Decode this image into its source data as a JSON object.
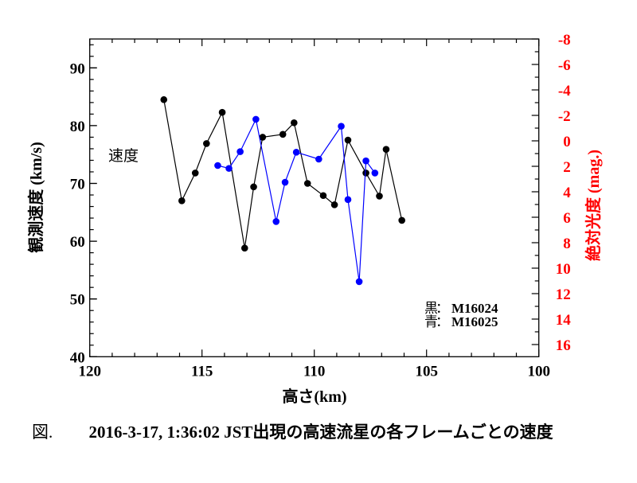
{
  "chart_data": {
    "type": "line",
    "xlabel": "高さ(km)",
    "ylabel": "観測速度 (km/s)",
    "y2label": "絶対光度 (mag.)",
    "annotation": "速度",
    "xlim": [
      120,
      100
    ],
    "ylim": [
      40,
      95
    ],
    "y2lim": [
      -8,
      16.9
    ],
    "x_ticks": [
      120,
      115,
      110,
      105,
      100
    ],
    "y_ticks": [
      40,
      50,
      60,
      70,
      80,
      90
    ],
    "y2_ticks": [
      -8,
      -6,
      -4,
      -2,
      0,
      2,
      4,
      6,
      8,
      10,
      12,
      14,
      16
    ],
    "grid": false,
    "legend": {
      "position": "bottom-right",
      "entries": [
        {
          "marker": "黒",
          "sep": "：",
          "label": "M16024"
        },
        {
          "marker": "青",
          "sep": "：",
          "label": "M16025"
        }
      ]
    },
    "series": [
      {
        "name": "M16024",
        "color": "#000000",
        "x": [
          116.7,
          115.9,
          115.3,
          114.8,
          114.1,
          113.1,
          112.7,
          112.3,
          111.4,
          110.9,
          110.3,
          109.6,
          109.1,
          108.5,
          107.7,
          107.1,
          106.8,
          106.1
        ],
        "y": [
          84.5,
          67.0,
          71.8,
          76.9,
          82.3,
          58.8,
          69.4,
          78.0,
          78.5,
          80.5,
          70.0,
          67.9,
          66.3,
          77.5,
          71.8,
          67.8,
          75.9,
          63.6
        ]
      },
      {
        "name": "M16025",
        "color": "#0000ff",
        "x": [
          114.3,
          113.8,
          113.3,
          112.6,
          111.7,
          111.3,
          110.8,
          109.8,
          108.8,
          108.5,
          108.0,
          107.7,
          107.3
        ],
        "y": [
          73.1,
          72.6,
          75.5,
          81.1,
          63.4,
          70.2,
          75.4,
          74.2,
          79.9,
          67.2,
          53.0,
          73.9,
          71.8
        ]
      }
    ],
    "axis2_color": "#ff0000"
  },
  "caption": {
    "figure_label": "図.",
    "text": "2016-3-17, 1:36:02 JST出現の高速流星の各フレームごとの速度"
  }
}
